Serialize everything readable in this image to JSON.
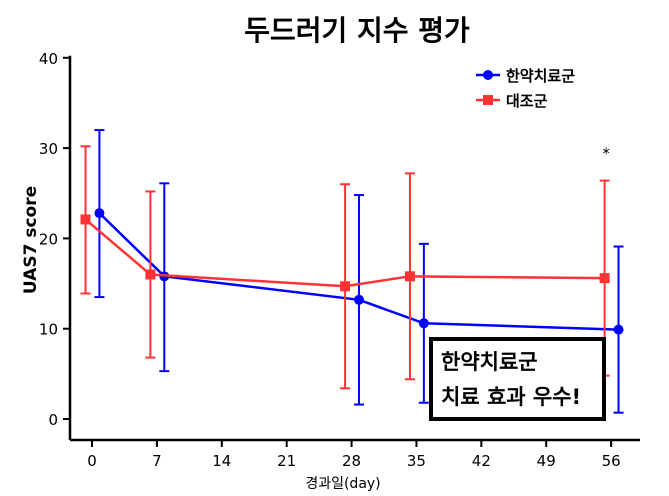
{
  "chart_data": {
    "type": "line",
    "title": "두드러기 지수 평가",
    "xlabel": "경과일(day)",
    "ylabel": "UAS7 score",
    "xlim": [
      -2,
      59
    ],
    "ylim": [
      0,
      40
    ],
    "xticks": [
      0,
      7,
      14,
      21,
      28,
      35,
      42,
      49,
      56
    ],
    "yticks": [
      0,
      10,
      20,
      30,
      40
    ],
    "grid": false,
    "legend_position": "top-right",
    "x": [
      0,
      7,
      28,
      35,
      56
    ],
    "series": [
      {
        "name": "한약치료군",
        "color": "#0000ff",
        "marker": "circle",
        "offset": 0.8,
        "values": [
          22.8,
          15.8,
          13.2,
          10.6,
          9.9
        ],
        "err_upper": [
          32.0,
          26.1,
          24.8,
          19.4,
          19.1
        ],
        "err_lower": [
          13.5,
          5.3,
          1.6,
          1.8,
          0.7
        ]
      },
      {
        "name": "대조군",
        "color": "#ff3333",
        "marker": "square",
        "offset": -0.7,
        "values": [
          22.1,
          16.0,
          14.7,
          15.8,
          15.6
        ],
        "err_upper": [
          30.2,
          25.2,
          26.0,
          27.2,
          26.4
        ],
        "err_lower": [
          13.9,
          6.8,
          3.4,
          4.4,
          4.8
        ]
      }
    ],
    "annotations": [
      {
        "text": "*",
        "x": 56,
        "y": 29.5
      }
    ],
    "callout": [
      "한약치료군",
      "치료 효과 우수!"
    ]
  }
}
